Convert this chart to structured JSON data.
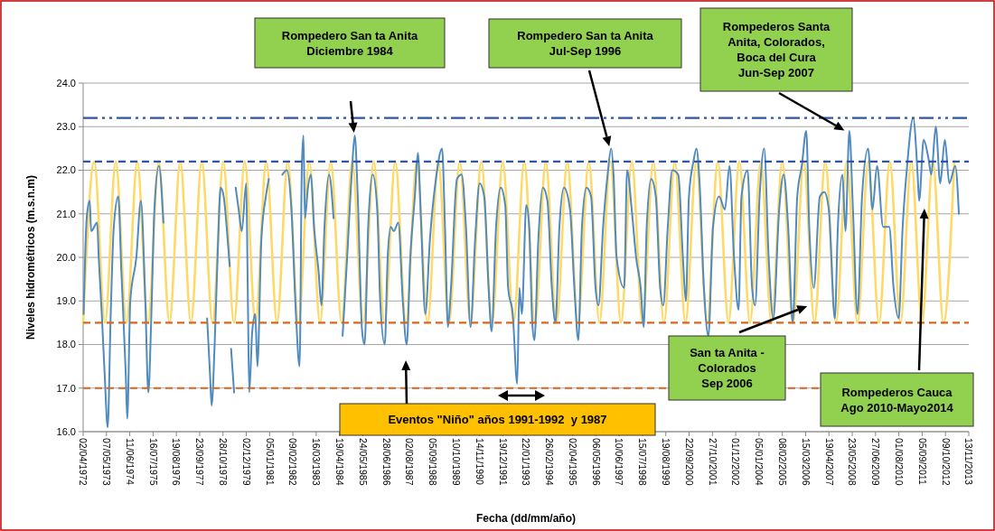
{
  "chart_data": {
    "type": "line",
    "xlabel": "Fecha (dd/mm/año)",
    "ylabel": "Niveles hidrométricos (m.s.n.m)",
    "xlim": [
      "1972-04-02",
      "2013-11-13"
    ],
    "xticks": [
      {
        "value": "1972-04-02",
        "label": "02/04/1972"
      },
      {
        "value": "1973-05-07",
        "label": "07/05/1973"
      },
      {
        "value": "1974-06-11",
        "label": "11/06/1974"
      },
      {
        "value": "1975-07-16",
        "label": "16/07/1975"
      },
      {
        "value": "1976-08-19",
        "label": "19/08/1976"
      },
      {
        "value": "1977-09-23",
        "label": "23/09/1977"
      },
      {
        "value": "1978-10-28",
        "label": "28/10/1978"
      },
      {
        "value": "1979-12-02",
        "label": "02/12/1979"
      },
      {
        "value": "1981-01-05",
        "label": "05/01/1981"
      },
      {
        "value": "1982-02-09",
        "label": "09/02/1982"
      },
      {
        "value": "1983-03-16",
        "label": "16/03/1983"
      },
      {
        "value": "1984-04-19",
        "label": "19/04/1984"
      },
      {
        "value": "1985-05-24",
        "label": "24/05/1985"
      },
      {
        "value": "1986-06-28",
        "label": "28/06/1986"
      },
      {
        "value": "1987-08-02",
        "label": "02/08/1987"
      },
      {
        "value": "1988-09-05",
        "label": "05/09/1988"
      },
      {
        "value": "1989-10-10",
        "label": "10/10/1989"
      },
      {
        "value": "1990-11-14",
        "label": "14/11/1990"
      },
      {
        "value": "1991-12-19",
        "label": "19/12/1991"
      },
      {
        "value": "1993-01-22",
        "label": "22/01/1993"
      },
      {
        "value": "1994-02-26",
        "label": "26/02/1994"
      },
      {
        "value": "1995-04-02",
        "label": "02/04/1995"
      },
      {
        "value": "1996-05-06",
        "label": "06/05/1996"
      },
      {
        "value": "1997-06-10",
        "label": "10/06/1997"
      },
      {
        "value": "1998-07-15",
        "label": "15/07/1998"
      },
      {
        "value": "1999-08-19",
        "label": "19/08/1999"
      },
      {
        "value": "2000-09-22",
        "label": "22/09/2000"
      },
      {
        "value": "2001-10-27",
        "label": "27/10/2001"
      },
      {
        "value": "2002-12-01",
        "label": "01/12/2002"
      },
      {
        "value": "2004-01-05",
        "label": "05/01/2004"
      },
      {
        "value": "2005-02-08",
        "label": "08/02/2005"
      },
      {
        "value": "2006-03-15",
        "label": "15/03/2006"
      },
      {
        "value": "2007-04-19",
        "label": "19/04/2007"
      },
      {
        "value": "2008-05-23",
        "label": "23/05/2008"
      },
      {
        "value": "2009-06-27",
        "label": "27/06/2009"
      },
      {
        "value": "2010-08-01",
        "label": "01/08/2010"
      },
      {
        "value": "2011-09-05",
        "label": "05/09/2011"
      },
      {
        "value": "2012-10-09",
        "label": "09/10/2012"
      },
      {
        "value": "2013-11-13",
        "label": "13/11/2013"
      }
    ],
    "ylim": [
      16,
      24
    ],
    "yticks": [
      {
        "value": 16,
        "label": "16.0"
      },
      {
        "value": 17,
        "label": "17.0"
      },
      {
        "value": 18,
        "label": "18.0"
      },
      {
        "value": 19,
        "label": "19.0"
      },
      {
        "value": 20,
        "label": "20.0"
      },
      {
        "value": 21,
        "label": "21.0"
      },
      {
        "value": 22,
        "label": "22.0"
      },
      {
        "value": 23,
        "label": "23.0"
      },
      {
        "value": 24,
        "label": "24.0"
      }
    ],
    "grid": "y",
    "series": [
      {
        "color": "#ffd966",
        "x": [
          "1972-04-02",
          "1972-10-10",
          "1973-04-12",
          "1973-10-14",
          "1974-04-16",
          "1974-10-18",
          "1975-04-20",
          "1975-10-21",
          "1976-04-23",
          "1976-10-25",
          "1977-04-27",
          "1977-10-29",
          "1978-05-01",
          "1978-11-02",
          "1979-05-05",
          "1979-11-06",
          "1980-05-09",
          "1980-11-09",
          "1981-05-12",
          "1981-11-13",
          "1982-05-16",
          "1982-11-17",
          "1983-05-20",
          "1983-11-21",
          "1984-05-24",
          "1984-11-24",
          "1985-05-27",
          "1985-11-28",
          "1986-05-31",
          "1986-12-02",
          "1987-06-04",
          "1987-12-06",
          "1988-06-08",
          "1988-12-09",
          "1989-06-11",
          "1989-12-13",
          "1990-06-15",
          "1990-12-17",
          "1991-06-19",
          "1991-12-21",
          "1992-06-23",
          "1992-12-24",
          "1993-06-26",
          "1993-12-28",
          "1994-06-30",
          "1995-01-01",
          "1995-07-04",
          "1996-01-05",
          "1996-07-07",
          "1997-01-08",
          "1997-07-11",
          "1998-01-12",
          "1998-07-15",
          "1999-01-16",
          "1999-07-19",
          "2000-01-20",
          "2000-07-22",
          "2001-01-23",
          "2001-07-26",
          "2002-01-27",
          "2002-07-30",
          "2003-01-31",
          "2003-08-03",
          "2004-02-04",
          "2004-08-06",
          "2005-02-07",
          "2005-08-10",
          "2006-02-11",
          "2006-08-14",
          "2007-02-15",
          "2007-08-18",
          "2008-02-19",
          "2008-08-21",
          "2009-02-22",
          "2009-08-25",
          "2010-02-26",
          "2010-08-29",
          "2011-03-02",
          "2011-09-02",
          "2012-03-06",
          "2012-09-05",
          "2013-03-09"
        ],
        "values": [
          18.5,
          22.2,
          18.5,
          22.2,
          18.5,
          22.2,
          18.5,
          22.2,
          18.5,
          22.2,
          18.5,
          22.2,
          18.5,
          22.2,
          18.5,
          22.2,
          18.5,
          22.2,
          18.5,
          22.2,
          18.5,
          22.2,
          18.5,
          22.2,
          18.5,
          22.2,
          18.5,
          22.2,
          18.5,
          22.2,
          18.5,
          22.2,
          18.5,
          22.2,
          18.5,
          22.2,
          18.5,
          22.2,
          18.5,
          22.2,
          18.5,
          22.2,
          18.5,
          22.2,
          18.5,
          22.2,
          18.5,
          22.2,
          18.5,
          22.2,
          18.5,
          22.2,
          18.5,
          22.2,
          18.5,
          22.2,
          18.5,
          22.2,
          18.5,
          22.2,
          18.5,
          22.2,
          18.5,
          22.2,
          18.5,
          22.2,
          18.5,
          22.2,
          18.5,
          22.2,
          18.5,
          22.2,
          18.5,
          22.2,
          18.5,
          22.2,
          18.5,
          22.2,
          18.5,
          22.2,
          18.5,
          22.2
        ]
      },
      {
        "color": "#4f8ac0",
        "x": [
          "1972-04-10",
          "1972-06-02",
          "1972-07-23",
          "1972-08-18",
          "1972-11-29",
          "1972-12-25",
          "1973-02-16",
          "1973-04-07",
          "1973-05-28",
          "1973-07-19",
          "1973-09-10",
          "1973-11-26",
          "1974-01-17",
          "1974-04-04",
          "1974-04-29",
          "1974-06-20",
          "1974-10-02",
          "1974-12-19",
          "1975-03-05",
          "1975-04-26",
          "1975-06-17",
          "1975-08-08",
          "1975-10-24",
          "1976-01-10",
          "1977-01-01",
          "1978-01-29",
          "1978-03-20",
          "1978-04-16",
          "1978-06-07",
          "1978-07-27",
          "1978-09-18",
          "1978-11-09",
          "1978-12-30",
          "1979-02-21",
          "1979-03-05",
          "1979-03-16",
          "1979-05-07",
          "1979-05-20",
          "1979-06-03",
          "1979-07-24",
          "1979-09-15",
          "1979-12-01",
          "1979-12-27",
          "1980-01-22",
          "1980-03-13",
          "1980-05-04",
          "1980-06-10",
          "1980-08-16",
          "1980-11-02",
          "1980-12-23",
          "1981-05-01",
          "1981-08-12",
          "1981-10-29",
          "1982-01-15",
          "1982-04-02",
          "1982-06-03",
          "1982-07-13",
          "1982-08-09",
          "1982-09-04",
          "1982-10-25",
          "1982-12-16",
          "1983-02-07",
          "1983-04-24",
          "1983-06-14",
          "1983-08-05",
          "1983-10-22",
          "1984-01-08",
          "1984-03-15",
          "1984-06-11",
          "1984-08-28",
          "1984-11-14",
          "1985-01-05",
          "1985-02-26",
          "1985-05-12",
          "1985-06-23",
          "1985-08-24",
          "1985-11-10",
          "1986-01-27",
          "1986-03-18",
          "1986-06-04",
          "1986-07-25",
          "1986-09-16",
          "1986-11-07",
          "1987-01-23",
          "1987-04-10",
          "1987-06-16",
          "1987-08-17",
          "1987-11-03",
          "1987-12-25",
          "1988-02-15",
          "1988-05-01",
          "1988-07-18",
          "1988-10-30",
          "1989-02-12",
          "1989-04-03",
          "1989-05-24",
          "1989-07-15",
          "1989-10-26",
          "1990-01-13",
          "1990-03-29",
          "1990-06-16",
          "1990-09-02",
          "1990-11-19",
          "1991-02-05",
          "1991-04-22",
          "1991-06-12",
          "1991-08-28",
          "1991-11-15",
          "1992-02-01",
          "1992-03-22",
          "1992-06-09",
          "1992-08-25",
          "1992-10-01",
          "1992-11-12",
          "1993-01-28",
          "1993-03-19",
          "1993-05-10",
          "1993-06-16",
          "1993-08-22",
          "1993-11-08",
          "1994-01-25",
          "1994-04-11",
          "1994-06-12",
          "1994-08-19",
          "1994-11-05",
          "1995-02-17",
          "1995-05-03",
          "1995-07-09",
          "1995-09-10",
          "1995-11-27",
          "1996-02-13",
          "1996-04-30",
          "1996-06-20",
          "1996-09-07",
          "1996-11-23",
          "1997-01-24",
          "1997-03-05",
          "1997-04-26",
          "1997-09-03",
          "1997-10-24",
          "1998-01-11",
          "1998-03-27",
          "1998-06-14",
          "1998-08-04",
          "1998-09-25",
          "1998-12-12",
          "1999-02-28",
          "1999-05-14",
          "1999-07-06",
          "1999-09-22",
          "1999-12-08",
          "2000-03-20",
          "2000-06-07",
          "2000-07-28",
          "2000-09-19",
          "2000-12-05",
          "2001-01-26",
          "2001-03-17",
          "2001-06-03",
          "2001-08-19",
          "2001-11-06",
          "2002-02-18",
          "2002-05-30",
          "2002-08-16",
          "2002-11-02",
          "2003-01-19",
          "2003-03-10",
          "2003-06-22",
          "2003-09-08",
          "2003-10-29",
          "2004-01-15",
          "2004-04-02",
          "2004-06-18",
          "2004-09-05",
          "2004-12-16",
          "2005-03-03",
          "2005-05-19",
          "2005-08-05",
          "2005-10-22",
          "2006-01-08",
          "2006-03-25",
          "2006-05-16",
          "2006-08-02",
          "2006-11-14",
          "2007-01-30",
          "2007-04-17",
          "2007-07-29",
          "2007-09-19",
          "2007-12-06",
          "2008-01-27",
          "2008-04-03",
          "2008-06-04",
          "2008-08-21",
          "2008-11-07",
          "2009-02-19",
          "2009-05-05",
          "2009-07-22",
          "2009-11-04",
          "2010-02-16",
          "2010-05-02",
          "2010-07-29",
          "2010-10-05",
          "2010-12-21",
          "2011-04-03",
          "2011-06-19",
          "2011-07-15",
          "2011-10-01",
          "2011-12-18",
          "2012-02-09",
          "2012-04-25",
          "2012-07-11",
          "2012-09-28",
          "2012-12-14",
          "2013-03-26",
          "2013-05-27"
        ],
        "values": [
          18.7,
          20.9,
          21.3,
          20.6,
          20.8,
          20.0,
          18.7,
          17.3,
          16.1,
          18.7,
          20.7,
          21.4,
          19.7,
          17.3,
          16.3,
          19.0,
          20.0,
          21.3,
          19.0,
          16.9,
          18.7,
          21.1,
          22.1,
          20.8,
          null,
          18.6,
          17.3,
          16.6,
          18.0,
          20.0,
          21.6,
          21.4,
          20.7,
          19.8,
          null,
          17.9,
          16.9,
          null,
          21.6,
          21.1,
          20.6,
          21.7,
          19.3,
          16.9,
          18.3,
          18.7,
          17.5,
          20.4,
          21.4,
          21.8,
          null,
          21.9,
          22.0,
          21.1,
          18.7,
          17.5,
          22.1,
          22.8,
          20.9,
          21.6,
          21.9,
          20.7,
          19.7,
          18.9,
          20.7,
          21.9,
          20.9,
          null,
          18.2,
          20.0,
          21.9,
          22.8,
          21.4,
          18.3,
          18.0,
          20.7,
          21.9,
          21.1,
          19.0,
          18.0,
          20.0,
          20.7,
          20.6,
          20.8,
          19.0,
          18.0,
          20.0,
          21.4,
          22.4,
          20.9,
          18.7,
          20.4,
          21.8,
          22.5,
          20.7,
          18.4,
          19.3,
          21.8,
          21.9,
          20.7,
          18.4,
          20.4,
          21.7,
          21.4,
          19.3,
          18.3,
          20.7,
          21.6,
          21.2,
          19.3,
          18.7,
          17.1,
          19.3,
          18.7,
          21.2,
          20.7,
          18.5,
          18.1,
          20.4,
          21.6,
          21.3,
          19.3,
          18.5,
          20.7,
          21.6,
          21.1,
          19.3,
          18.1,
          20.7,
          21.6,
          21.4,
          19.3,
          18.9,
          20.7,
          21.9,
          22.5,
          21.9,
          20.0,
          19.3,
          22.0,
          21.1,
          20.0,
          19.3,
          18.4,
          20.7,
          21.8,
          21.4,
          19.3,
          18.9,
          20.7,
          22.0,
          21.9,
          20.0,
          19.0,
          21.4,
          22.2,
          22.5,
          21.8,
          19.3,
          18.2,
          20.7,
          21.4,
          21.1,
          22.1,
          20.0,
          18.8,
          21.4,
          22.0,
          19.3,
          18.9,
          21.4,
          22.5,
          20.0,
          18.6,
          21.1,
          21.9,
          20.7,
          18.5,
          21.4,
          22.1,
          22.9,
          20.7,
          19.3,
          21.4,
          21.5,
          21.1,
          18.6,
          20.7,
          21.9,
          20.6,
          22.9,
          21.1,
          18.7,
          21.4,
          22.5,
          21.1,
          22.1,
          20.7,
          20.7,
          19.3,
          18.6,
          20.7,
          22.1,
          23.2,
          21.9,
          21.3,
          22.7,
          22.3,
          21.9,
          23.0,
          21.7,
          22.7,
          21.7,
          22.1,
          21.0
        ]
      }
    ],
    "ref_lines": [
      {
        "axis": "y",
        "value": 23.2,
        "color": "#2f55a4",
        "line_style": "dashdot"
      },
      {
        "axis": "y",
        "value": 22.2,
        "color": "#2f55a4",
        "line_style": "dashed"
      },
      {
        "axis": "y",
        "value": 18.5,
        "color": "#d9661f",
        "line_style": "dashed"
      },
      {
        "axis": "y",
        "value": 17.0,
        "color": "#d9661f",
        "line_style": "dashed"
      }
    ],
    "annotations": [
      "Rompedero San ta Anita\nDiciembre 1984",
      "Rompedero San ta Anita\nJul-Sep 1996",
      "Rompederos Santa\nAnita, Colorados,\nBoca del Cura\nJun-Sep 2007",
      "San ta Anita -\nColorados\nSep 2006",
      "Rompederos Cauca\nAgo 2010-Mayo2014",
      "Eventos \"Niño\" años 1991-1992  y 1987"
    ]
  }
}
